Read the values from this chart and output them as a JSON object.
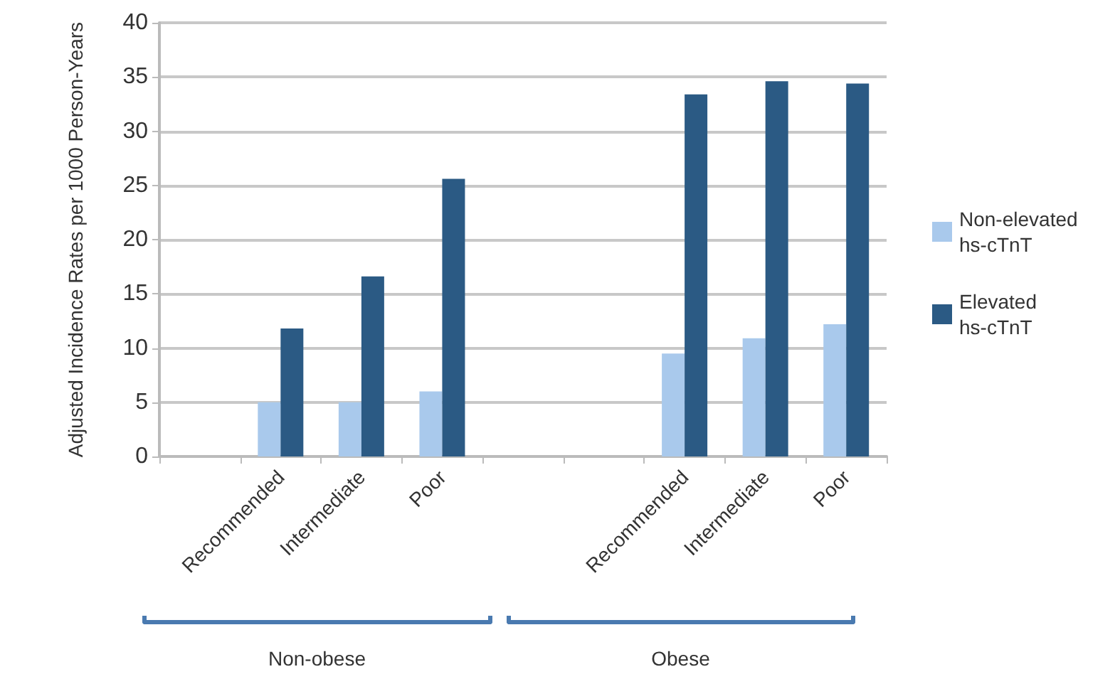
{
  "chart_data": {
    "type": "bar",
    "ylabel": "Adjusted Incidence Rates per 1000 Person-Years",
    "categories": [
      null,
      "Recommended",
      "Intermediate",
      "Poor",
      null,
      null,
      "Recommended",
      "Intermediate",
      "Poor"
    ],
    "series": [
      {
        "name": "Non-elevated hs-cTnT",
        "color": "#a9c9ec",
        "values": [
          null,
          5.0,
          5.0,
          6.0,
          null,
          null,
          9.5,
          10.9,
          12.2
        ]
      },
      {
        "name": "Elevated hs-cTnT",
        "color": "#2b5a84",
        "values": [
          null,
          11.8,
          16.6,
          25.6,
          null,
          null,
          33.4,
          34.6,
          34.4
        ]
      }
    ],
    "ylim": [
      0,
      40
    ],
    "yticks": [
      0,
      5,
      10,
      15,
      20,
      25,
      30,
      35,
      40
    ],
    "annotations": [
      "Non-obese",
      "Obese"
    ],
    "grid": "y",
    "legend": "right"
  }
}
